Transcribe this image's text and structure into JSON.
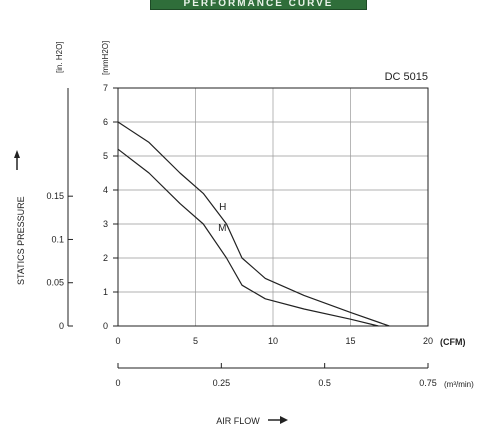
{
  "header": {
    "banner_text": "PERFORMANCE CURVE"
  },
  "chart_data": {
    "type": "line",
    "title": "DC 5015",
    "xlabel": "AIR FLOW",
    "ylabel": "STATICS PRESSURE",
    "x_axis_primary": {
      "unit": "(CFM)",
      "range": [
        0,
        20
      ],
      "ticks": [
        "0",
        "5",
        "10",
        "15",
        "20"
      ]
    },
    "x_axis_secondary": {
      "unit": "(m³/min)",
      "range": [
        0,
        0.75
      ],
      "ticks": [
        "0",
        "0.25",
        "0.5",
        "0.75"
      ]
    },
    "y_axis_primary": {
      "unit": "[mmH2O]",
      "range": [
        0,
        7
      ],
      "ticks": [
        "0",
        "1",
        "2",
        "3",
        "4",
        "5",
        "6",
        "7"
      ]
    },
    "y_axis_secondary": {
      "unit": "[in. H2O]",
      "range": [
        0,
        0.275
      ],
      "ticks": [
        "0",
        "0.05",
        "0.1",
        "0.15"
      ]
    },
    "grid": true,
    "series": [
      {
        "name": "H",
        "x": [
          0,
          2,
          4,
          5.5,
          7,
          8,
          9.5,
          12,
          15,
          17.5
        ],
        "y": [
          6.0,
          5.4,
          4.5,
          3.9,
          3.0,
          2.0,
          1.4,
          0.9,
          0.4,
          0
        ]
      },
      {
        "name": "M",
        "x": [
          0,
          2,
          4,
          5.5,
          7,
          8,
          9.5,
          12,
          15,
          16.8
        ],
        "y": [
          5.2,
          4.5,
          3.6,
          3.0,
          2.0,
          1.2,
          0.8,
          0.5,
          0.2,
          0
        ]
      }
    ]
  }
}
